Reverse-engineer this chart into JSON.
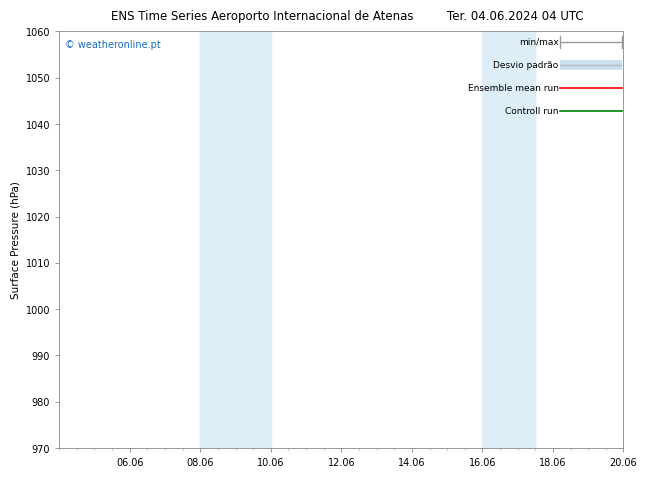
{
  "title_left": "ENS Time Series Aeroporto Internacional de Atenas",
  "title_right": "Ter. 04.06.2024 04 UTC",
  "ylabel": "Surface Pressure (hPa)",
  "watermark": "© weatheronline.pt",
  "ylim": [
    970,
    1060
  ],
  "yticks": [
    970,
    980,
    990,
    1000,
    1010,
    1020,
    1030,
    1040,
    1050,
    1060
  ],
  "xtick_labels": [
    "06.06",
    "08.06",
    "10.06",
    "12.06",
    "14.06",
    "16.06",
    "18.06",
    "20.06"
  ],
  "xtick_positions": [
    2,
    4,
    6,
    8,
    10,
    12,
    14,
    16
  ],
  "xlim": [
    0,
    16
  ],
  "shaded_bands": [
    {
      "x_start": 4,
      "x_end": 6
    },
    {
      "x_start": 12,
      "x_end": 13.5
    }
  ],
  "shade_color": "#ddeef8",
  "background_color": "#ffffff",
  "plot_bg_color": "#ffffff",
  "title_fontsize": 8.5,
  "tick_fontsize": 7,
  "ylabel_fontsize": 7.5,
  "watermark_fontsize": 7,
  "legend_fontsize": 6.5,
  "border_color": "#888888"
}
